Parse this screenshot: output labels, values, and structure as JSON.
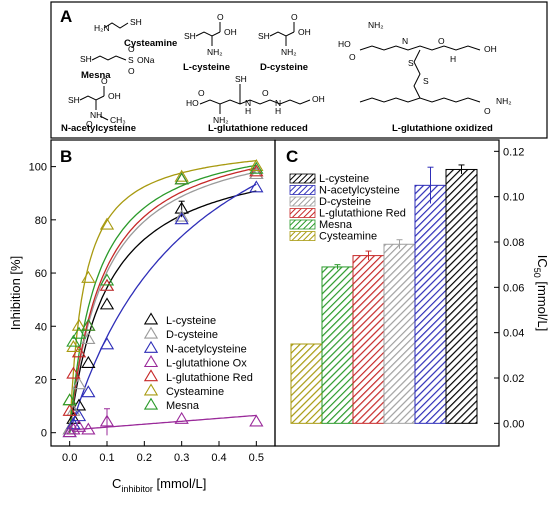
{
  "panel_a": {
    "letter": "A",
    "compounds": [
      {
        "name": "Cysteamine",
        "smiles_text": [
          "SH",
          "H₂N"
        ]
      },
      {
        "name": "Mesna",
        "smiles_text": [
          "SH",
          "S",
          "O",
          "O",
          "ONa"
        ]
      },
      {
        "name": "L-cysteine",
        "smiles_text": [
          "SH",
          "OH",
          "O",
          "NH₂"
        ]
      },
      {
        "name": "D-cysteine",
        "smiles_text": [
          "SH",
          "OH",
          "O",
          "NH₂"
        ]
      },
      {
        "name": "N-acetylcysteine",
        "smiles_text": [
          "SH",
          "OH",
          "O",
          "NH",
          "O",
          "CH₃"
        ]
      },
      {
        "name": "L-glutathione reduced",
        "smiles_text": [
          "SH",
          "HO",
          "O",
          "NH₂",
          "H",
          "N",
          "O",
          "H",
          "N",
          "OH"
        ]
      },
      {
        "name": "L-glutathione oxidized",
        "smiles_text": [
          "NH₂",
          "HO",
          "O",
          "N",
          "O",
          "H",
          "S",
          "S",
          "OH",
          "O",
          "NH₂"
        ]
      }
    ]
  },
  "panel_b": {
    "letter": "B",
    "chart_data": {
      "type": "scatter",
      "xlabel_main": "C",
      "xlabel_sub": "inhibitor",
      "xlabel_unit": " [mmol/L]",
      "ylabel": "Inhibition [%]",
      "xlim": [
        -0.05,
        0.55
      ],
      "ylim": [
        -5,
        110
      ],
      "xticks": [
        "0.0",
        "0.1",
        "0.2",
        "0.3",
        "0.4",
        "0.5"
      ],
      "yticks": [
        "0",
        "20",
        "40",
        "60",
        "80",
        "100"
      ],
      "legend_position": "center-right",
      "series": [
        {
          "name": "L-cysteine",
          "color": "#000000",
          "points": [
            [
              0.0,
              1
            ],
            [
              0.01,
              5
            ],
            [
              0.025,
              10
            ],
            [
              0.05,
              26
            ],
            [
              0.1,
              48
            ],
            [
              0.3,
              84
            ],
            [
              0.5,
              97
            ]
          ],
          "curve": {
            "vmax": 109,
            "k": 0.1
          }
        },
        {
          "name": "D-cysteine",
          "color": "#9a9a9a",
          "points": [
            [
              0.0,
              1
            ],
            [
              0.01,
              8
            ],
            [
              0.025,
              18
            ],
            [
              0.05,
              35
            ],
            [
              0.1,
              55
            ],
            [
              0.3,
              81
            ],
            [
              0.5,
              97
            ]
          ],
          "curve": {
            "vmax": 116,
            "k": 0.092
          }
        },
        {
          "name": "N-acetylcysteine",
          "color": "#2e2eb8",
          "points": [
            [
              0.0,
              0
            ],
            [
              0.01,
              3
            ],
            [
              0.025,
              6
            ],
            [
              0.05,
              15
            ],
            [
              0.1,
              33
            ],
            [
              0.3,
              80
            ],
            [
              0.5,
              92
            ]
          ],
          "curve": {
            "vmax": 155,
            "k": 0.33
          }
        },
        {
          "name": "L-glutathione Ox",
          "color": "#9a2a9a",
          "points": [
            [
              0.0,
              0
            ],
            [
              0.01,
              1
            ],
            [
              0.025,
              2
            ],
            [
              0.05,
              1
            ],
            [
              0.1,
              4
            ],
            [
              0.3,
              5
            ],
            [
              0.5,
              4
            ]
          ],
          "line": {
            "slope": 11,
            "intercept": 1
          }
        },
        {
          "name": "L-glutathione Red",
          "color": "#c62828",
          "points": [
            [
              0.0,
              8
            ],
            [
              0.01,
              22
            ],
            [
              0.025,
              30
            ],
            [
              0.05,
              40
            ],
            [
              0.1,
              55
            ],
            [
              0.3,
              95
            ],
            [
              0.5,
              98
            ]
          ],
          "curve": {
            "vmax": 117,
            "k": 0.088
          }
        },
        {
          "name": "Cysteamine",
          "color": "#a89a10",
          "points": [
            [
              0.0,
              12
            ],
            [
              0.01,
              32
            ],
            [
              0.025,
              40
            ],
            [
              0.05,
              58
            ],
            [
              0.1,
              78
            ],
            [
              0.3,
              96
            ],
            [
              0.5,
              100
            ]
          ],
          "curve": {
            "vmax": 110,
            "k": 0.038
          }
        },
        {
          "name": "Mesna",
          "color": "#2a9a2a",
          "points": [
            [
              0.0,
              12
            ],
            [
              0.01,
              34
            ],
            [
              0.025,
              37
            ],
            [
              0.05,
              40
            ],
            [
              0.1,
              57
            ],
            [
              0.3,
              95
            ],
            [
              0.5,
              99
            ]
          ],
          "curve": {
            "vmax": 115,
            "k": 0.072
          }
        }
      ],
      "error_bars": [
        {
          "series": "L-glutathione Ox",
          "x": 0.1,
          "y": 4,
          "err": 5
        },
        {
          "series": "L-cysteine",
          "x": 0.3,
          "y": 84,
          "err": 3
        }
      ]
    }
  },
  "panel_c": {
    "letter": "C",
    "chart_data": {
      "type": "bar",
      "ylabel_main": "IC",
      "ylabel_sub": "50",
      "ylabel_unit": " [mmol/L]",
      "ylim": [
        -0.01,
        0.125
      ],
      "yticks": [
        "0.00",
        "0.02",
        "0.04",
        "0.06",
        "0.08",
        "0.10",
        "0.12"
      ],
      "legend_position": "top-left",
      "categories": [
        "Cysteamine",
        "Mesna",
        "L-glutathione Red",
        "D-cysteine",
        "N-acetylcysteine",
        "L-cysteine"
      ],
      "values": [
        0.035,
        0.069,
        0.074,
        0.079,
        0.105,
        0.112
      ],
      "errors": [
        0.0,
        0.001,
        0.002,
        0.002,
        0.008,
        0.002
      ],
      "colors": [
        "#a89a10",
        "#2a9a2a",
        "#c62828",
        "#a0a0a0",
        "#2e2eb8",
        "#000000"
      ],
      "legend": [
        "L-cysteine",
        "N-acetylcysteine",
        "D-cysteine",
        "L-glutathione Red",
        "Mesna",
        "Cysteamine"
      ],
      "legend_colors": [
        "#000000",
        "#2e2eb8",
        "#a0a0a0",
        "#c62828",
        "#2a9a2a",
        "#a89a10"
      ]
    }
  }
}
